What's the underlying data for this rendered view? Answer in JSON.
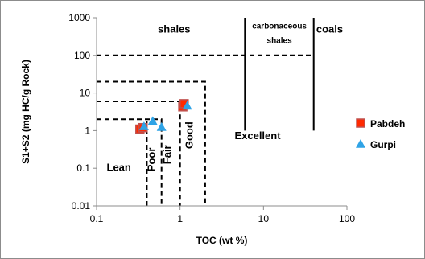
{
  "chart_data": {
    "type": "scatter",
    "xlabel": "TOC (wt %)",
    "ylabel": "S1+S2 (mg HC/g Rock)",
    "x_scale": "log",
    "y_scale": "log",
    "xlim": [
      0.1,
      100
    ],
    "ylim": [
      0.01,
      1000
    ],
    "x_ticks": [
      "0.1",
      "1",
      "10",
      "100"
    ],
    "y_ticks": [
      "0.01",
      "0.1",
      "1",
      "10",
      "100",
      "1000"
    ],
    "grid": false,
    "legend_position": "right",
    "series": [
      {
        "name": "Pabdeh",
        "marker": "square",
        "color": "#ff2a00",
        "edge_color": "#c0504d",
        "points": [
          {
            "x": 0.33,
            "y": 1.1
          },
          {
            "x": 0.36,
            "y": 1.2
          },
          {
            "x": 1.08,
            "y": 4.3
          },
          {
            "x": 1.12,
            "y": 5.2
          }
        ]
      },
      {
        "name": "Gurpi",
        "marker": "triangle",
        "color": "#2fa3e6",
        "points": [
          {
            "x": 0.37,
            "y": 1.3
          },
          {
            "x": 0.47,
            "y": 1.8
          },
          {
            "x": 0.6,
            "y": 1.25
          },
          {
            "x": 1.22,
            "y": 4.6
          }
        ]
      }
    ],
    "boundaries": [
      {
        "type": "dashed",
        "x_values": [
          0.4,
          0.4
        ],
        "y_values": [
          0.01,
          2
        ]
      },
      {
        "type": "dashed",
        "x_values": [
          0.1,
          0.6,
          0.6
        ],
        "y_values": [
          2,
          2,
          0.01
        ]
      },
      {
        "type": "dashed",
        "x_values": [
          0.1,
          1,
          1
        ],
        "y_values": [
          6,
          6,
          0.01
        ]
      },
      {
        "type": "dashed",
        "x_values": [
          0.1,
          2,
          2
        ],
        "y_values": [
          20,
          20,
          0.01
        ]
      },
      {
        "type": "dashed",
        "x_values": [
          0.1,
          40
        ],
        "y_values": [
          100,
          100
        ]
      },
      {
        "type": "solid",
        "x_values": [
          6,
          6
        ],
        "y_values": [
          1,
          1000
        ]
      },
      {
        "type": "solid",
        "x_values": [
          40,
          40
        ],
        "y_values": [
          1,
          1000
        ]
      }
    ],
    "annotations": [
      {
        "text": "shales",
        "x": 0.85,
        "y": 400,
        "style": "large"
      },
      {
        "text": "carbonaceous",
        "x": 15.5,
        "y": 520,
        "style": "small"
      },
      {
        "text": "shales",
        "x": 15.5,
        "y": 210,
        "style": "small"
      },
      {
        "text": "coals",
        "x": 62,
        "y": 400,
        "style": "large"
      },
      {
        "text": "Excellent",
        "x": 8.5,
        "y": 0.6,
        "style": "large"
      },
      {
        "text": "Lean",
        "x": 0.185,
        "y": 0.085,
        "style": "large"
      },
      {
        "text": "Poor",
        "x": 0.5,
        "y": 0.17,
        "style": "vertical"
      },
      {
        "text": "Fair",
        "x": 0.77,
        "y": 0.23,
        "style": "vertical"
      },
      {
        "text": "Good",
        "x": 1.42,
        "y": 0.75,
        "style": "vertical"
      }
    ]
  }
}
